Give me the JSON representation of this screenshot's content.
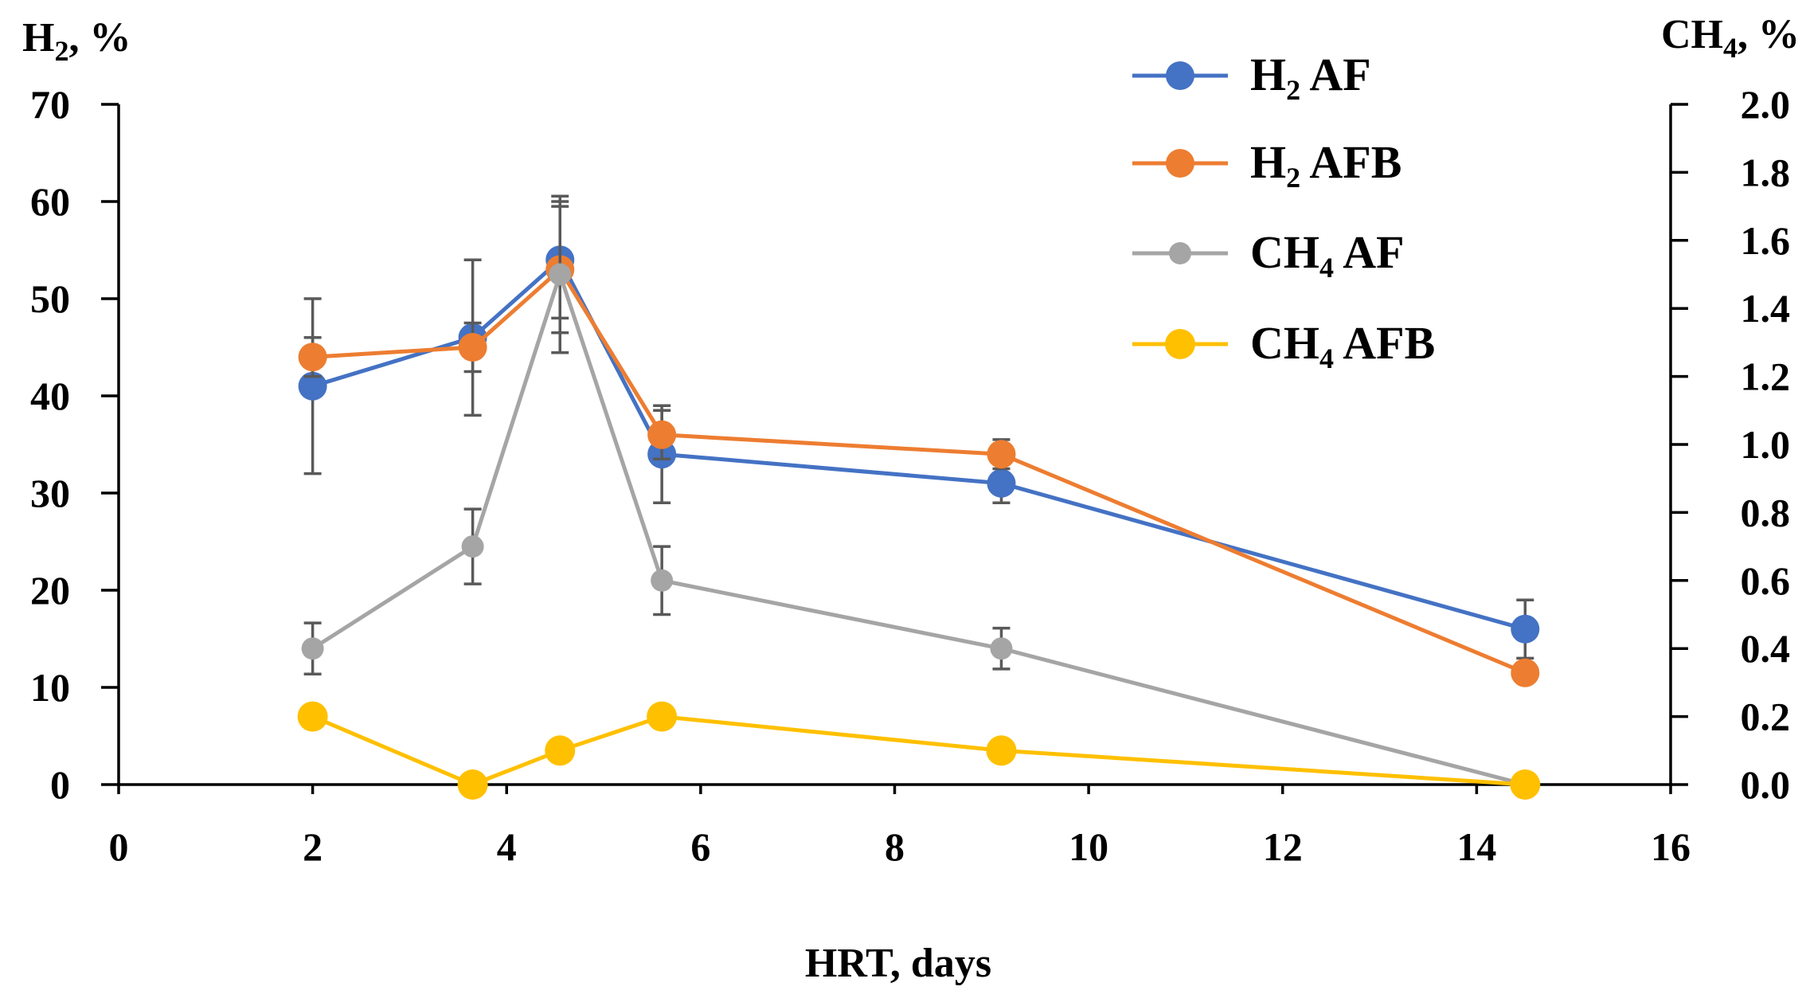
{
  "chart_data": {
    "type": "line",
    "xlabel": "HRT, days",
    "ylabel_left": {
      "main": "H",
      "sub": "2",
      "rest": ", %"
    },
    "ylabel_right": {
      "main": "CH",
      "sub": "4",
      "rest": ", %"
    },
    "xlim": [
      0,
      16
    ],
    "ylim_left": [
      0,
      70
    ],
    "ylim_right": [
      0,
      2.0
    ],
    "x_ticks": [
      "0",
      "2",
      "4",
      "6",
      "8",
      "10",
      "12",
      "14",
      "16"
    ],
    "y_left_ticks": [
      "0",
      "10",
      "20",
      "30",
      "40",
      "50",
      "60",
      "70"
    ],
    "y_right_ticks": [
      "0.0",
      "0.2",
      "0.4",
      "0.6",
      "0.8",
      "1.0",
      "1.2",
      "1.4",
      "1.6",
      "1.8",
      "2.0"
    ],
    "legend_position": "top-right",
    "grid": false,
    "series": [
      {
        "name": "H2 AF",
        "label_main": "H",
        "label_sub": "2",
        "label_rest": " AF",
        "axis": "left",
        "color": "#4472C4",
        "marker_size": "large",
        "x": [
          2,
          3.65,
          4.55,
          5.6,
          9.1,
          14.5
        ],
        "y": [
          41,
          46,
          54,
          34,
          31,
          16
        ],
        "err": [
          9,
          8,
          6,
          5,
          2,
          3
        ]
      },
      {
        "name": "H2 AFB",
        "label_main": "H",
        "label_sub": "2",
        "label_rest": " AFB",
        "axis": "left",
        "color": "#ED7D31",
        "marker_size": "large",
        "x": [
          2,
          3.65,
          4.55,
          5.6,
          9.1,
          14.5
        ],
        "y": [
          44,
          45,
          53,
          36,
          34,
          11.5
        ],
        "err": [
          2,
          2.5,
          6.5,
          2.5,
          1.5,
          1
        ]
      },
      {
        "name": "CH4 AF",
        "label_main": "CH",
        "label_sub": "4",
        "label_rest": " AF",
        "axis": "right",
        "color": "#A5A5A5",
        "marker_size": "small",
        "x": [
          2,
          3.65,
          4.55,
          5.6,
          9.1,
          14.5
        ],
        "y": [
          0.4,
          0.7,
          1.5,
          0.6,
          0.4,
          0.0
        ],
        "err": [
          0.075,
          0.11,
          0.23,
          0.1,
          0.06,
          0
        ]
      },
      {
        "name": "CH4 AFB",
        "label_main": "CH",
        "label_sub": "4",
        "label_rest": " AFB",
        "axis": "right",
        "color": "#FFC000",
        "marker_size": "large",
        "x": [
          2,
          3.65,
          4.55,
          5.6,
          9.1,
          14.5
        ],
        "y": [
          0.2,
          0.0,
          0.1,
          0.2,
          0.1,
          0.0
        ],
        "err": [
          0.01,
          0,
          0,
          0.01,
          0,
          0
        ]
      }
    ]
  }
}
